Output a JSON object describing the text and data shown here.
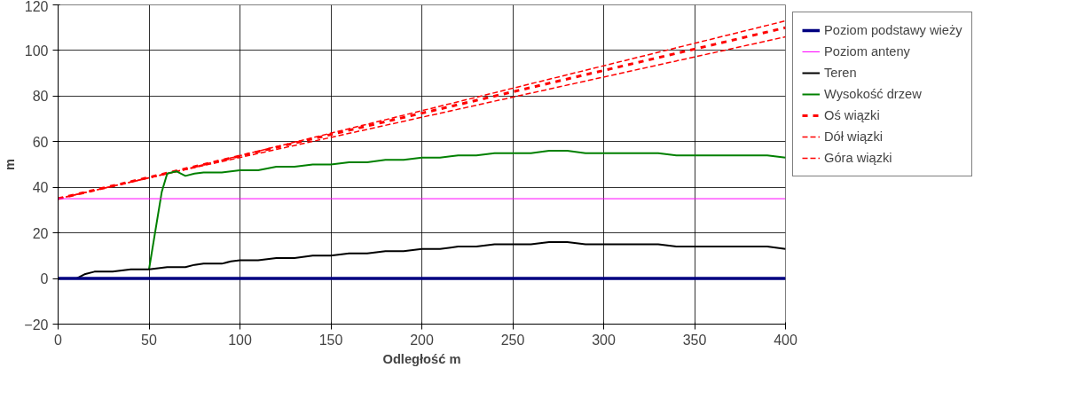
{
  "chart_data": {
    "type": "line",
    "xlabel": "Odległość m",
    "ylabel": "m",
    "xlim": [
      0,
      400
    ],
    "xticks": [
      0,
      50,
      100,
      150,
      200,
      250,
      300,
      350,
      400
    ],
    "ylim": [
      -20,
      120
    ],
    "yticks": [
      -20,
      0,
      20,
      40,
      60,
      80,
      100,
      120
    ],
    "grid": true,
    "legend": "right",
    "line_style": "solid",
    "series": [
      {
        "name": "Poziom podstawy wieży",
        "color": "#000080",
        "x": [
          0,
          400
        ],
        "values": [
          0,
          0
        ]
      },
      {
        "name": "Poziom anteny",
        "color": "#ff00ff",
        "x": [
          0,
          400
        ],
        "values": [
          35,
          35
        ]
      },
      {
        "name": "Teren",
        "color": "#000000",
        "x": [
          0,
          10,
          15,
          20,
          30,
          40,
          50,
          60,
          70,
          75,
          80,
          90,
          95,
          100,
          110,
          120,
          130,
          140,
          150,
          160,
          170,
          180,
          190,
          200,
          210,
          220,
          230,
          240,
          250,
          260,
          270,
          280,
          290,
          300,
          310,
          320,
          330,
          340,
          350,
          360,
          370,
          380,
          390,
          400
        ],
        "values": [
          0,
          0,
          2,
          3,
          3,
          4,
          4,
          5,
          5,
          6,
          6.5,
          6.5,
          7.5,
          8,
          8,
          9,
          9,
          10,
          10,
          11,
          11,
          12,
          12,
          13,
          13,
          14,
          14,
          15,
          15,
          15,
          16,
          16,
          15,
          15,
          15,
          15,
          15,
          14,
          14,
          14,
          14,
          14,
          14,
          13
        ]
      },
      {
        "name": "Wysokość drzew",
        "color": "#008000",
        "x": [
          50,
          57,
          60,
          65,
          70,
          75,
          80,
          90,
          100,
          110,
          120,
          130,
          140,
          150,
          160,
          170,
          180,
          190,
          200,
          210,
          220,
          230,
          240,
          250,
          260,
          270,
          280,
          290,
          300,
          310,
          320,
          330,
          340,
          350,
          360,
          370,
          380,
          390,
          400
        ],
        "values": [
          4,
          38,
          46,
          47,
          45,
          46,
          46.5,
          46.5,
          47.5,
          47.5,
          49,
          49,
          50,
          50,
          51,
          51,
          52,
          52,
          53,
          53,
          54,
          54,
          55,
          55,
          55,
          56,
          56,
          55,
          55,
          55,
          55,
          55,
          54,
          54,
          54,
          54,
          54,
          54,
          53
        ]
      },
      {
        "name": "Oś wiązki",
        "color": "#ff0000",
        "line_style": "dashed",
        "x": [
          0,
          400
        ],
        "values": [
          35,
          110
        ]
      },
      {
        "name": "Dół wiązki",
        "color": "#ff0000",
        "line_style": "dashed",
        "x": [
          0,
          60,
          400
        ],
        "values": [
          35,
          46,
          106
        ]
      },
      {
        "name": "Góra wiązki",
        "color": "#ff0000",
        "line_style": "dashed",
        "x": [
          0,
          60,
          400
        ],
        "values": [
          35,
          46,
          113
        ]
      }
    ]
  }
}
